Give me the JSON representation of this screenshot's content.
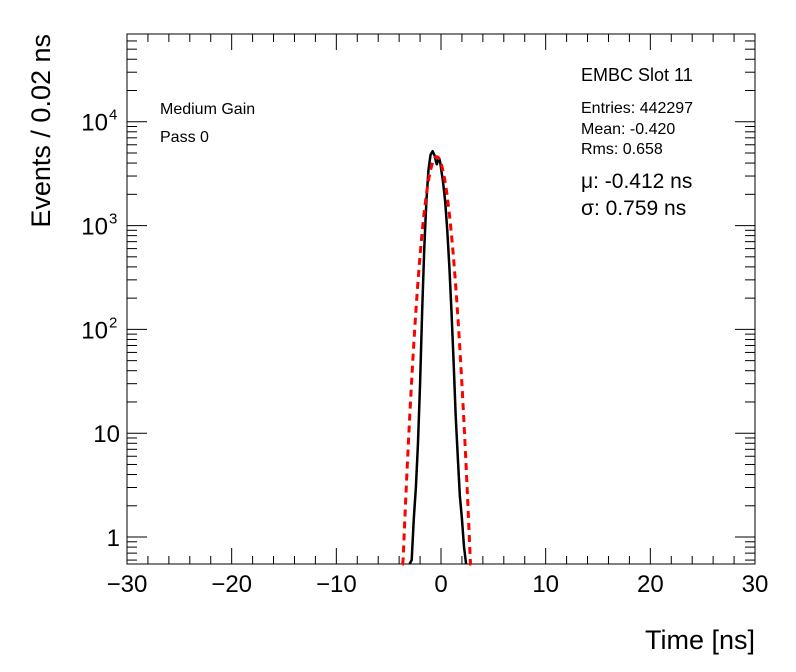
{
  "chart_data": {
    "type": "line",
    "xlabel": "Time [ns]",
    "ylabel": "Events / 0.02 ns",
    "xlim": [
      -30,
      30
    ],
    "ylim_log": [
      0.55,
      70000
    ],
    "yscale": "log",
    "x_ticks": [
      {
        "value": -30,
        "label": "−30"
      },
      {
        "value": -20,
        "label": "−20"
      },
      {
        "value": -10,
        "label": "−10"
      },
      {
        "value": 0,
        "label": "0"
      },
      {
        "value": 10,
        "label": "10"
      },
      {
        "value": 20,
        "label": "20"
      },
      {
        "value": 30,
        "label": "30"
      }
    ],
    "y_ticks": [
      {
        "value": 1,
        "base": "1",
        "exp": ""
      },
      {
        "value": 10,
        "base": "10",
        "exp": ""
      },
      {
        "value": 100,
        "base": "10",
        "exp": "2"
      },
      {
        "value": 1000,
        "base": "10",
        "exp": "3"
      },
      {
        "value": 10000,
        "base": "10",
        "exp": "4"
      }
    ],
    "annotations": {
      "gain": "Medium Gain",
      "pass": "Pass 0",
      "slot": "EMBC Slot 11",
      "entries": "Entries: 442297",
      "mean": "Mean: -0.420",
      "rms": "Rms: 0.658",
      "mu": "μ: -0.412 ns",
      "sigma": "σ: 0.759 ns"
    },
    "series": [
      {
        "style": "histogram",
        "color": "#000000",
        "x": [
          -3.0,
          -2.8,
          -2.6,
          -2.4,
          -2.2,
          -2.0,
          -1.8,
          -1.6,
          -1.4,
          -1.2,
          -1.0,
          -0.8,
          -0.6,
          -0.5,
          -0.4,
          -0.3,
          -0.2,
          -0.1,
          0.0,
          0.2,
          0.4,
          0.6,
          0.8,
          1.0,
          1.2,
          1.4,
          1.6,
          1.8,
          2.0,
          2.2,
          2.4
        ],
        "y": [
          0.55,
          0.6,
          1.5,
          3,
          8,
          30,
          150,
          600,
          1700,
          3400,
          4800,
          5200,
          4700,
          4200,
          3900,
          4200,
          4500,
          4200,
          3600,
          2600,
          1700,
          900,
          400,
          150,
          50,
          15,
          6,
          2.5,
          1.5,
          0.8,
          0.55
        ]
      },
      {
        "style": "fit",
        "name": "Gaussian fit",
        "color": "#ff0000",
        "mu": -0.412,
        "sigma": 0.759,
        "amplitude": 4600,
        "x_range": [
          -3.7,
          2.9
        ]
      }
    ]
  }
}
